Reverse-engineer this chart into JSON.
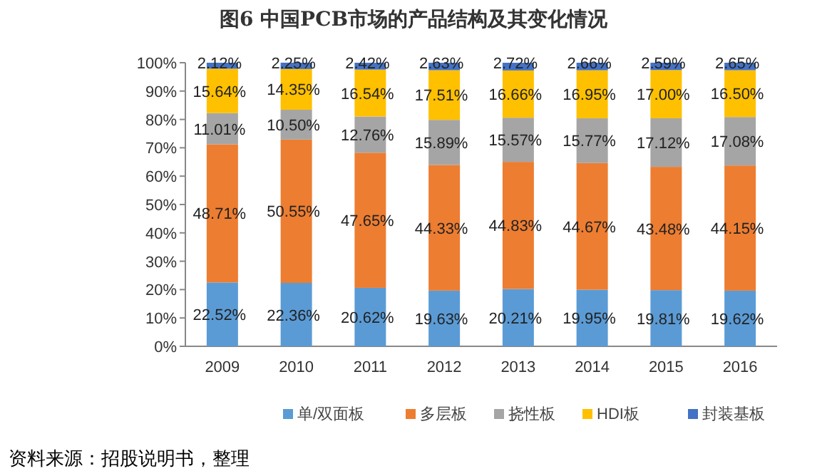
{
  "chart_data": {
    "type": "bar",
    "stacked": true,
    "title": "图6    中国PCB市场的产品结构及其变化情况",
    "categories": [
      "2009",
      "2010",
      "2011",
      "2012",
      "2013",
      "2014",
      "2015",
      "2016"
    ],
    "series": [
      {
        "name": "单/双面板",
        "color": "#5b9bd5",
        "values": [
          22.52,
          22.36,
          20.62,
          19.63,
          20.21,
          19.95,
          19.81,
          19.62
        ],
        "value_labels": [
          "22.52%",
          "22.36%",
          "20.62%",
          "19.63%",
          "20.21%",
          "19.95%",
          "19.81%",
          "19.62%"
        ]
      },
      {
        "name": "多层板",
        "color": "#ed7d31",
        "values": [
          48.71,
          50.55,
          47.65,
          44.33,
          44.83,
          44.67,
          43.48,
          44.15
        ],
        "value_labels": [
          "48.71%",
          "50.55%",
          "47.65%",
          "44.33%",
          "44.83%",
          "44.67%",
          "43.48%",
          "44.15%"
        ]
      },
      {
        "name": "挠性板",
        "color": "#a5a5a5",
        "values": [
          11.01,
          10.5,
          12.76,
          15.89,
          15.57,
          15.77,
          17.12,
          17.08
        ],
        "value_labels": [
          "11.01%",
          "10.50%",
          "12.76%",
          "15.89%",
          "15.57%",
          "15.77%",
          "17.12%",
          "17.08%"
        ]
      },
      {
        "name": "HDI板",
        "color": "#ffc000",
        "values": [
          15.64,
          14.35,
          16.54,
          17.51,
          16.66,
          16.95,
          17.0,
          16.5
        ],
        "value_labels": [
          "15.64%",
          "14.35%",
          "16.54%",
          "17.51%",
          "16.66%",
          "16.95%",
          "17.00%",
          "16.50%"
        ]
      },
      {
        "name": "封装基板",
        "color": "#4472c4",
        "values": [
          2.12,
          2.25,
          2.42,
          2.63,
          2.72,
          2.66,
          2.59,
          2.65
        ],
        "value_labels": [
          "2.12%",
          "2.25%",
          "2.42%",
          "2.63%",
          "2.72%",
          "2.66%",
          "2.59%",
          "2.65%"
        ]
      }
    ],
    "legend": "bottom",
    "ylim": [
      0,
      100
    ],
    "yticks": [
      {
        "value": 0,
        "label": "0%"
      },
      {
        "value": 10,
        "label": "10%"
      },
      {
        "value": 20,
        "label": "20%"
      },
      {
        "value": 30,
        "label": "30%"
      },
      {
        "value": 40,
        "label": "40%"
      },
      {
        "value": 50,
        "label": "50%"
      },
      {
        "value": 60,
        "label": "60%"
      },
      {
        "value": 70,
        "label": "70%"
      },
      {
        "value": 80,
        "label": "80%"
      },
      {
        "value": 90,
        "label": "90%"
      },
      {
        "value": 100,
        "label": "100%"
      }
    ],
    "annotations": [
      "资料来源：招股说明书，整理"
    ]
  }
}
